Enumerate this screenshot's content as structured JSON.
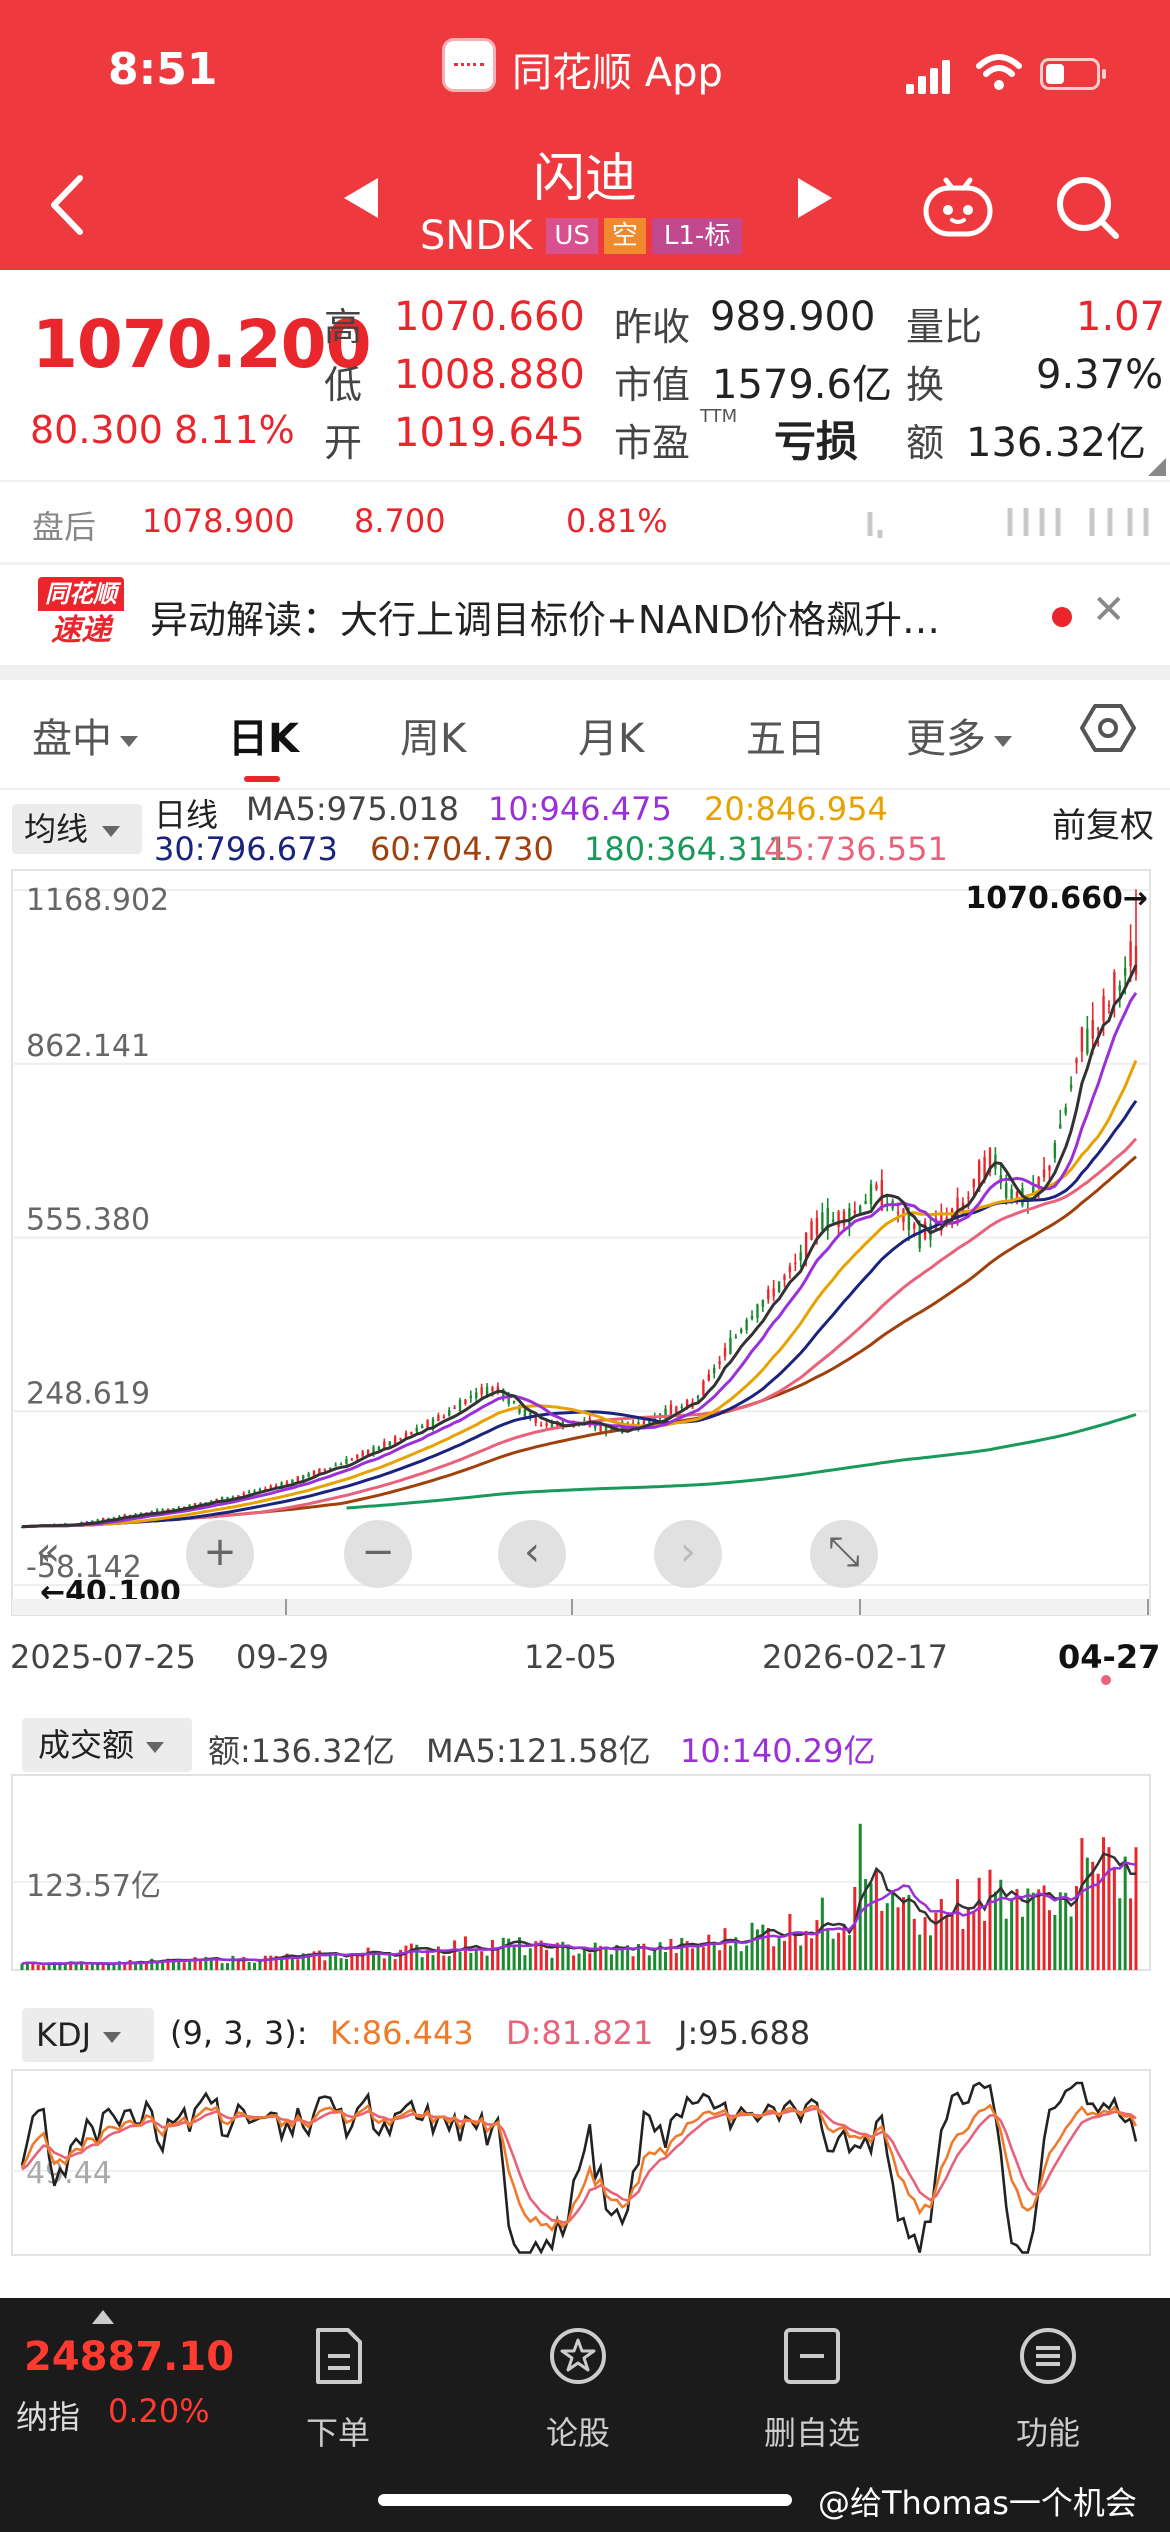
{
  "status": {
    "time": "8:51",
    "app_name": "同花顺 App"
  },
  "header": {
    "title": "闪迪",
    "ticker": "SNDK",
    "tags": [
      "US",
      "空",
      "L1-标"
    ]
  },
  "quote": {
    "price": "1070.200",
    "change": "80.300",
    "change_pct": "8.11%",
    "high_label": "高",
    "high": "1070.660",
    "low_label": "低",
    "low": "1008.880",
    "open_label": "开",
    "open": "1019.645",
    "prev_close_label": "昨收",
    "prev_close": "989.900",
    "mktcap_label": "市值",
    "mktcap": "1579.6亿",
    "pe_label": "市盈",
    "pe_sup": "TTM",
    "pe": "亏损",
    "vol_ratio_label": "量比",
    "vol_ratio": "1.07",
    "turnover_label": "换",
    "turnover": "9.37%",
    "amount_label": "额",
    "amount": "136.32亿"
  },
  "after_hours": {
    "label": "盘后",
    "price": "1078.900",
    "change": "8.700",
    "pct": "0.81%"
  },
  "news": {
    "logo_top": "同花顺",
    "logo_bottom": "速递",
    "text": "异动解读：大行上调目标价+NAND价格飙升…"
  },
  "tabs": [
    {
      "label": "盘中",
      "dropdown": true
    },
    {
      "label": "日K",
      "dropdown": false
    },
    {
      "label": "周K",
      "dropdown": false
    },
    {
      "label": "月K",
      "dropdown": false
    },
    {
      "label": "五日",
      "dropdown": false
    },
    {
      "label": "更多",
      "dropdown": true
    }
  ],
  "ma_panel": {
    "selector": "均线",
    "period_label": "日线",
    "ma5": "MA5:975.018",
    "ma10": "10:946.475",
    "ma20": "20:846.954",
    "ma30": "30:796.673",
    "ma60": "60:704.730",
    "ma180": "180:364.311",
    "ma45": "45:736.551",
    "adjust": "前复权",
    "max_marker": "1070.660→",
    "min_marker": "←40.100"
  },
  "colors": {
    "up": "#e8262c",
    "down": "#1a8a2e",
    "ma5": "#333333",
    "ma10": "#9b30d9",
    "ma20": "#e8a200",
    "ma30": "#1a237e",
    "ma60": "#a0410d",
    "ma45": "#e8627a",
    "ma180": "#1a9a5a"
  },
  "chart_data": {
    "type": "candlestick",
    "y_ticks": [
      "1168.902",
      "862.141",
      "555.380",
      "248.619",
      "-58.142"
    ],
    "x_ticks": [
      "2025-07-25",
      "09-29",
      "12-05",
      "2026-02-17",
      "04-27"
    ],
    "ylim": [
      -58.142,
      1168.902
    ],
    "close_path": [
      [
        0,
        45
      ],
      [
        10,
        50
      ],
      [
        20,
        65
      ],
      [
        30,
        80
      ],
      [
        40,
        100
      ],
      [
        50,
        125
      ],
      [
        60,
        160
      ],
      [
        70,
        200
      ],
      [
        78,
        240
      ],
      [
        84,
        280
      ],
      [
        88,
        290
      ],
      [
        92,
        255
      ],
      [
        96,
        225
      ],
      [
        100,
        225
      ],
      [
        104,
        230
      ],
      [
        108,
        215
      ],
      [
        112,
        222
      ],
      [
        116,
        232
      ],
      [
        120,
        250
      ],
      [
        124,
        260
      ],
      [
        128,
        320
      ],
      [
        132,
        380
      ],
      [
        136,
        430
      ],
      [
        140,
        470
      ],
      [
        144,
        520
      ],
      [
        146,
        560
      ],
      [
        148,
        590
      ],
      [
        150,
        585
      ],
      [
        154,
        600
      ],
      [
        158,
        640
      ],
      [
        162,
        600
      ],
      [
        166,
        560
      ],
      [
        170,
        580
      ],
      [
        174,
        610
      ],
      [
        178,
        680
      ],
      [
        180,
        690
      ],
      [
        182,
        640
      ],
      [
        186,
        620
      ],
      [
        190,
        680
      ],
      [
        193,
        780
      ],
      [
        196,
        900
      ],
      [
        199,
        930
      ],
      [
        202,
        990
      ],
      [
        204,
        1020
      ],
      [
        206,
        1070
      ]
    ],
    "n_days": 207,
    "volume": {
      "selector": "成交额",
      "amount": "额:136.32亿",
      "ma5": "MA5:121.58亿",
      "ma10": "10:140.29亿",
      "y_tick": "123.57亿",
      "max": 265
    },
    "kdj": {
      "selector": "KDJ",
      "params": "(9, 3, 3):",
      "k": "K:86.443",
      "d": "D:81.821",
      "j": "J:95.688",
      "y_tick": "49.44"
    }
  },
  "chart_controls": [
    "«",
    "+",
    "−",
    "‹",
    "›",
    "⤡"
  ],
  "bottom": {
    "index_value": "24887.10",
    "index_name": "纳指",
    "index_pct": "0.20%",
    "nav": [
      {
        "label": "下单",
        "icon": "order-icon"
      },
      {
        "label": "论股",
        "icon": "discuss-icon"
      },
      {
        "label": "删自选",
        "icon": "remove-watchlist-icon"
      },
      {
        "label": "功能",
        "icon": "menu-icon"
      }
    ]
  },
  "watermark": "@给Thomas一个机会"
}
